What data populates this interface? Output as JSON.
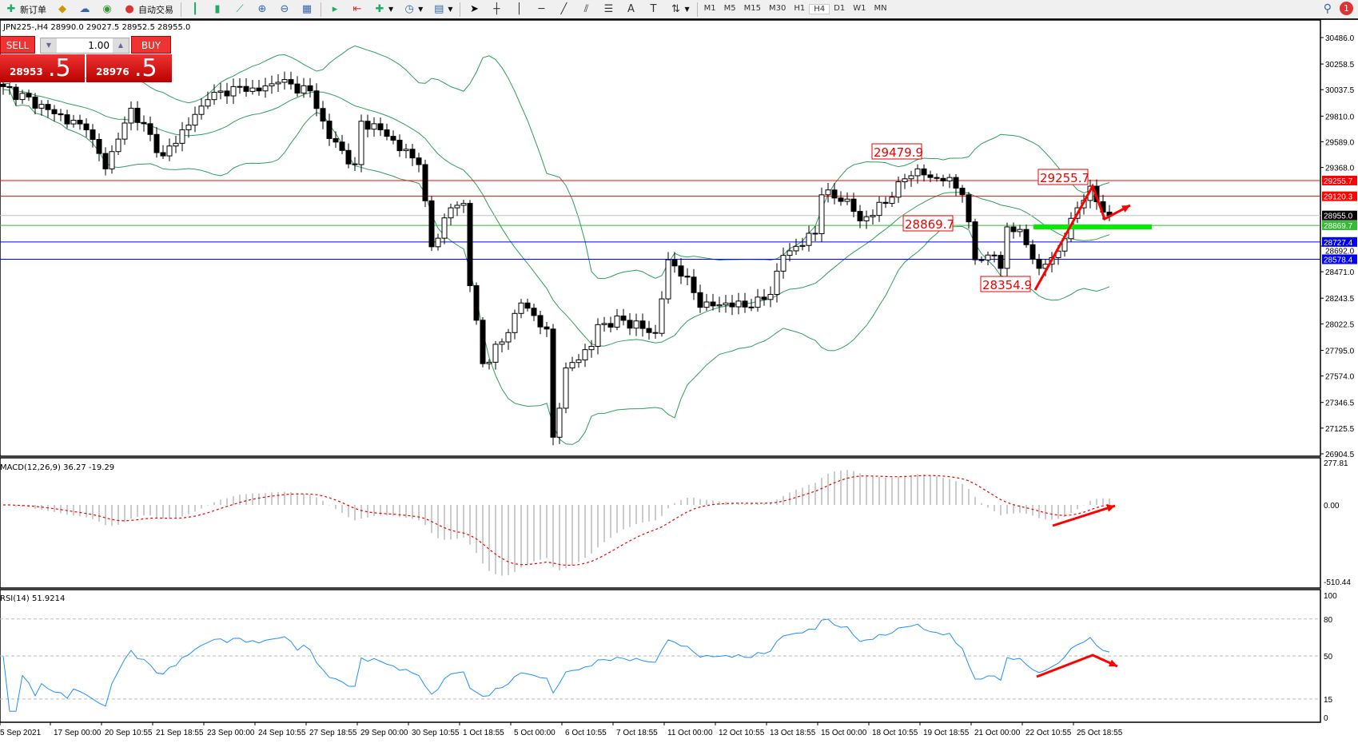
{
  "toolbar": {
    "items": [
      {
        "icon": "new-order-icon",
        "label": "新订单"
      },
      {
        "icon": "market-watch-icon",
        "label": ""
      },
      {
        "icon": "navigator-icon",
        "label": ""
      },
      {
        "icon": "signals-icon",
        "label": ""
      },
      {
        "icon": "autotrading-icon",
        "label": "自动交易"
      }
    ],
    "timeframes": [
      "M1",
      "M5",
      "M15",
      "M30",
      "H1",
      "H4",
      "D1",
      "W1",
      "MN"
    ],
    "active_timeframe": "H4",
    "notification_count": "1"
  },
  "chart": {
    "title": "JPN225-,H4  28990.0 29027.5 28952.5 28955.0",
    "trade_panel": {
      "sell": "SELL",
      "buy": "BUY",
      "lot": "1.00",
      "sell_price_main": "28953",
      "sell_price_big": ".5",
      "buy_price_main": "28976",
      "buy_price_big": ".5"
    },
    "price_axis": [
      "30486.0",
      "30258.5",
      "30037.5",
      "29810.0",
      "29589.0",
      "29368.0",
      "28692.0",
      "28471.0",
      "28243.5",
      "28022.5",
      "27795.0",
      "27574.0",
      "27346.5",
      "27125.5",
      "26904.5"
    ],
    "hlines": [
      {
        "price": "29255.7",
        "color": "#ff0000"
      },
      {
        "price": "29120.3",
        "color": "#ff0000"
      },
      {
        "price": "28955.0",
        "color": "#c0c0c0",
        "label_bg": "#000000"
      },
      {
        "price": "28869.7",
        "color": "#33bb33"
      },
      {
        "price": "28727.4",
        "color": "#0000ff"
      },
      {
        "price": "28578.4",
        "color": "#0000ff"
      }
    ],
    "annotations": [
      "29479.9",
      "29255.7",
      "28869.7",
      "28354.9"
    ],
    "colors": {
      "bands": "#2e9e5e",
      "arrow": "#ff0000",
      "support_zone": "#00ee00"
    },
    "time_axis": [
      "5 Sep 2021",
      "17 Sep 00:00",
      "20 Sep 10:55",
      "21 Sep 18:55",
      "23 Sep 00:00",
      "24 Sep 10:55",
      "27 Sep 18:55",
      "29 Sep 00:00",
      "30 Sep 10:55",
      "1 Oct 18:55",
      "5 Oct 00:00",
      "6 Oct 10:55",
      "7 Oct 18:55",
      "11 Oct 00:00",
      "12 Oct 10:55",
      "13 Oct 18:55",
      "15 Oct 00:00",
      "18 Oct 10:55",
      "19 Oct 18:55",
      "21 Oct 00:00",
      "22 Oct 10:55",
      "25 Oct 18:55"
    ]
  },
  "macd": {
    "label": "MACD(12,26,9) 36.27 -19.29",
    "axis": [
      "277.81",
      "0.00",
      "-510.44"
    ]
  },
  "rsi": {
    "label": "RSI(14) 51.9214",
    "axis": [
      "100",
      "80",
      "50",
      "15",
      "0"
    ],
    "levels": [
      80,
      50,
      15
    ]
  },
  "chart_data": {
    "type": "candlestick",
    "symbol": "JPN225-",
    "timeframe": "H4",
    "close_waypoints": [
      [
        0,
        30064
      ],
      [
        13,
        29692
      ],
      [
        16,
        29356
      ],
      [
        20,
        29878
      ],
      [
        25,
        29468
      ],
      [
        32,
        29952
      ],
      [
        36,
        30064
      ],
      [
        40,
        30027
      ],
      [
        43,
        30101
      ],
      [
        48,
        30027
      ],
      [
        51,
        29617
      ],
      [
        55,
        29393
      ],
      [
        56,
        29766
      ],
      [
        59,
        29692
      ],
      [
        65,
        29393
      ],
      [
        67,
        28686
      ],
      [
        70,
        29021
      ],
      [
        72,
        29059
      ],
      [
        73,
        28351
      ],
      [
        75,
        27680
      ],
      [
        78,
        27867
      ],
      [
        81,
        28202
      ],
      [
        85,
        27978
      ],
      [
        86,
        27047
      ],
      [
        88,
        27643
      ],
      [
        92,
        27829
      ],
      [
        93,
        28016
      ],
      [
        97,
        28053
      ],
      [
        102,
        27941
      ],
      [
        104,
        28574
      ],
      [
        107,
        28425
      ],
      [
        109,
        28165
      ],
      [
        113,
        28202
      ],
      [
        117,
        28165
      ],
      [
        120,
        28276
      ],
      [
        122,
        28612
      ],
      [
        127,
        28798
      ],
      [
        128,
        29133
      ],
      [
        132,
        29096
      ],
      [
        134,
        28909
      ],
      [
        138,
        29059
      ],
      [
        140,
        29245
      ],
      [
        143,
        29356
      ],
      [
        145,
        29282
      ],
      [
        148,
        29282
      ],
      [
        150,
        29133
      ],
      [
        152,
        28574
      ],
      [
        155,
        28612
      ],
      [
        156,
        28500
      ],
      [
        157,
        28857
      ],
      [
        159,
        28835
      ],
      [
        162,
        28500
      ],
      [
        165,
        28649
      ],
      [
        168,
        29021
      ],
      [
        170,
        29207
      ],
      [
        172,
        28984
      ],
      [
        173,
        28955
      ]
    ],
    "ylim": [
      26904.5,
      30486.0
    ]
  }
}
